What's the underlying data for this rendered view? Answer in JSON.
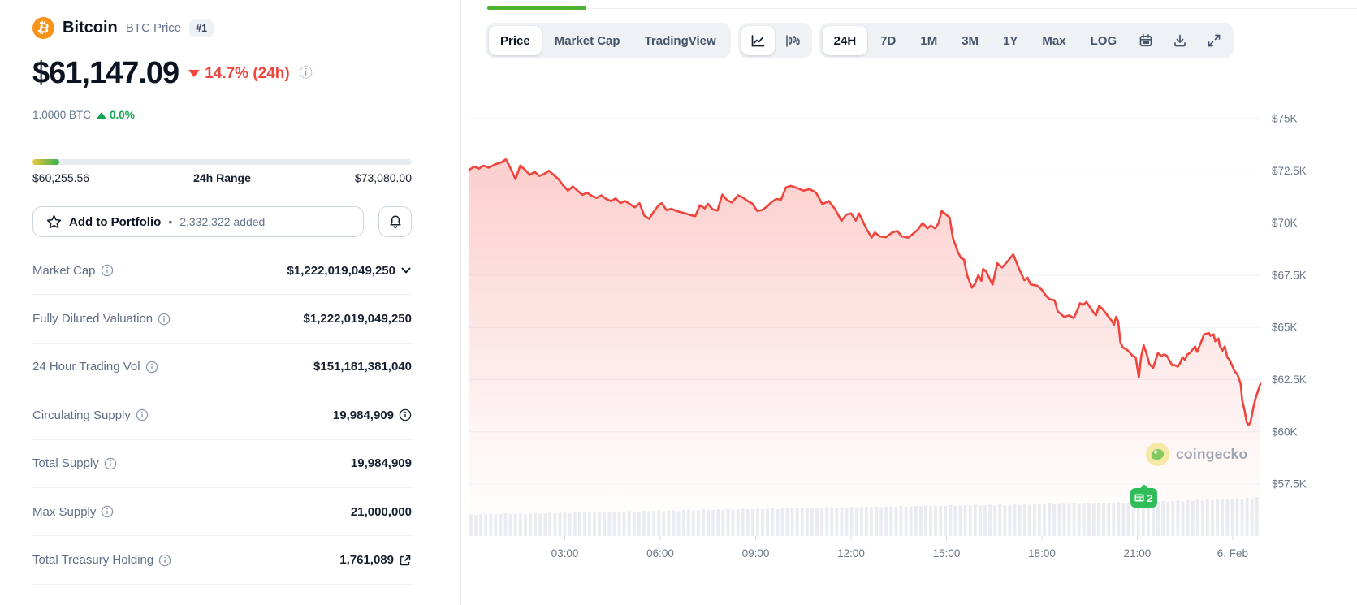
{
  "coin": {
    "name": "Bitcoin",
    "symbol_label": "BTC Price",
    "rank": "#1"
  },
  "price": {
    "value": "$61,147.09",
    "change": "14.7% (24h)",
    "change_direction": "down",
    "btc_value": "1.0000 BTC",
    "btc_change": "0.0%",
    "btc_change_direction": "up"
  },
  "range": {
    "low": "$60,255.56",
    "label": "24h Range",
    "high": "$73,080.00",
    "fill_pct": 7
  },
  "portfolio": {
    "label": "Add to Portfolio",
    "bullet": "•",
    "added": "2,332,322 added"
  },
  "stats": [
    {
      "label": "Market Cap",
      "value": "$1,222,019,049,250",
      "value_icon": "chevron-down"
    },
    {
      "label": "Fully Diluted Valuation",
      "value": "$1,222,019,049,250"
    },
    {
      "label": "24 Hour Trading Vol",
      "value": "$151,181,381,040"
    },
    {
      "label": "Circulating Supply",
      "value": "19,984,909",
      "value_icon": "info"
    },
    {
      "label": "Total Supply",
      "value": "19,984,909"
    },
    {
      "label": "Max Supply",
      "value": "21,000,000"
    },
    {
      "label": "Total Treasury Holding",
      "value": "1,761,089",
      "value_icon": "external-link"
    }
  ],
  "toolbar": {
    "tabs": [
      {
        "label": "Price",
        "active": true
      },
      {
        "label": "Market Cap",
        "active": false
      },
      {
        "label": "TradingView",
        "active": false
      }
    ],
    "chart_types": [
      {
        "icon": "line-chart-icon",
        "active": true
      },
      {
        "icon": "candlestick-icon",
        "active": false
      }
    ],
    "ranges": [
      {
        "label": "24H",
        "active": true
      },
      {
        "label": "7D",
        "active": false
      },
      {
        "label": "1M",
        "active": false
      },
      {
        "label": "3M",
        "active": false
      },
      {
        "label": "1Y",
        "active": false
      },
      {
        "label": "Max",
        "active": false
      },
      {
        "label": "LOG",
        "active": false
      }
    ],
    "tools": [
      "calendar-icon",
      "download-icon",
      "expand-icon"
    ]
  },
  "chart_badge": {
    "count": "2"
  },
  "watermark": {
    "text": "coingecko"
  },
  "colors": {
    "accent_red": "#f0453d",
    "up_green": "#0fa84e",
    "badge_green": "#2ebd59",
    "tab_indicator_green": "#4eb330",
    "range_gradient": [
      "#edc53f",
      "#35b34a"
    ],
    "volume_bar": "#e9edf2",
    "gridline": "#f0f2f5",
    "axis_label": "#6b7787",
    "bitcoin_orange": "#f7931a"
  },
  "chart_data": {
    "type": "line",
    "title": "Bitcoin price, 24H",
    "x_unit": "hours since 00:00",
    "xlim": [
      0,
      24.87
    ],
    "ylim_usd_thousands": [
      57.5,
      76.4
    ],
    "grid": "horizontal",
    "legend": "none",
    "line_color": "#f0453d",
    "fill": "red gradient fading down",
    "y_ticks": [
      {
        "v": 75,
        "label": "$75K"
      },
      {
        "v": 72.5,
        "label": "$72.5K"
      },
      {
        "v": 70,
        "label": "$70K"
      },
      {
        "v": 67.5,
        "label": "$67.5K"
      },
      {
        "v": 65,
        "label": "$65K"
      },
      {
        "v": 62.5,
        "label": "$62.5K"
      },
      {
        "v": 60,
        "label": "$60K"
      },
      {
        "v": 57.5,
        "label": "$57.5K"
      }
    ],
    "x_ticks": [
      {
        "t": 3,
        "label": "03:00"
      },
      {
        "t": 6,
        "label": "06:00"
      },
      {
        "t": 9,
        "label": "09:00"
      },
      {
        "t": 12,
        "label": "12:00"
      },
      {
        "t": 15,
        "label": "15:00"
      },
      {
        "t": 18,
        "label": "18:00"
      },
      {
        "t": 21,
        "label": "21:00"
      },
      {
        "t": 24,
        "label": "6. Feb"
      }
    ],
    "series": [
      {
        "name": "BTC price (USD thousands)",
        "points": [
          [
            0,
            72.55
          ],
          [
            0.15,
            72.7
          ],
          [
            0.3,
            72.6
          ],
          [
            0.45,
            72.75
          ],
          [
            0.6,
            72.65
          ],
          [
            0.8,
            72.8
          ],
          [
            1,
            72.9
          ],
          [
            1.15,
            73.05
          ],
          [
            1.3,
            72.6
          ],
          [
            1.45,
            72.1
          ],
          [
            1.6,
            72.75
          ],
          [
            1.75,
            72.55
          ],
          [
            1.9,
            72.3
          ],
          [
            2.05,
            72.45
          ],
          [
            2.2,
            72.25
          ],
          [
            2.35,
            72.35
          ],
          [
            2.5,
            72.5
          ],
          [
            2.65,
            72.3
          ],
          [
            2.8,
            72.1
          ],
          [
            2.95,
            71.8
          ],
          [
            3.1,
            71.55
          ],
          [
            3.25,
            71.75
          ],
          [
            3.4,
            71.55
          ],
          [
            3.55,
            71.35
          ],
          [
            3.7,
            71.45
          ],
          [
            3.85,
            71.3
          ],
          [
            4,
            71.2
          ],
          [
            4.15,
            71.32
          ],
          [
            4.3,
            71.15
          ],
          [
            4.45,
            71.05
          ],
          [
            4.6,
            71.18
          ],
          [
            4.75,
            70.95
          ],
          [
            4.9,
            71.05
          ],
          [
            5.05,
            70.9
          ],
          [
            5.2,
            70.75
          ],
          [
            5.35,
            70.95
          ],
          [
            5.5,
            70.35
          ],
          [
            5.65,
            70.2
          ],
          [
            5.8,
            70.55
          ],
          [
            5.95,
            70.85
          ],
          [
            6.05,
            70.95
          ],
          [
            6.2,
            70.62
          ],
          [
            6.35,
            70.68
          ],
          [
            6.5,
            70.58
          ],
          [
            6.65,
            70.52
          ],
          [
            6.8,
            70.46
          ],
          [
            6.95,
            70.38
          ],
          [
            7.1,
            70.33
          ],
          [
            7.25,
            70.85
          ],
          [
            7.4,
            70.7
          ],
          [
            7.5,
            70.92
          ],
          [
            7.65,
            70.65
          ],
          [
            7.8,
            70.6
          ],
          [
            7.95,
            71.36
          ],
          [
            8.1,
            71.1
          ],
          [
            8.25,
            70.98
          ],
          [
            8.45,
            71.32
          ],
          [
            8.6,
            71.22
          ],
          [
            8.75,
            71.05
          ],
          [
            8.9,
            70.92
          ],
          [
            9.05,
            70.58
          ],
          [
            9.2,
            70.62
          ],
          [
            9.35,
            70.78
          ],
          [
            9.5,
            71
          ],
          [
            9.65,
            71.15
          ],
          [
            9.8,
            71.12
          ],
          [
            9.95,
            71.7
          ],
          [
            10.1,
            71.78
          ],
          [
            10.3,
            71.68
          ],
          [
            10.5,
            71.55
          ],
          [
            10.7,
            71.62
          ],
          [
            10.9,
            71.45
          ],
          [
            11.1,
            70.9
          ],
          [
            11.3,
            71.05
          ],
          [
            11.5,
            70.66
          ],
          [
            11.7,
            70.1
          ],
          [
            11.85,
            70.4
          ],
          [
            12,
            70.46
          ],
          [
            12.15,
            70.12
          ],
          [
            12.25,
            70.46
          ],
          [
            12.5,
            69.68
          ],
          [
            12.65,
            69.3
          ],
          [
            12.75,
            69.55
          ],
          [
            12.9,
            69.36
          ],
          [
            13.1,
            69.32
          ],
          [
            13.3,
            69.55
          ],
          [
            13.45,
            69.62
          ],
          [
            13.6,
            69.36
          ],
          [
            13.8,
            69.3
          ],
          [
            14,
            69.55
          ],
          [
            14.1,
            69.68
          ],
          [
            14.25,
            70
          ],
          [
            14.4,
            69.74
          ],
          [
            14.5,
            69.87
          ],
          [
            14.65,
            69.74
          ],
          [
            14.75,
            70
          ],
          [
            14.85,
            70.58
          ],
          [
            14.95,
            70.45
          ],
          [
            15.1,
            70.26
          ],
          [
            15.2,
            69.3
          ],
          [
            15.35,
            68.65
          ],
          [
            15.45,
            68.33
          ],
          [
            15.55,
            68.26
          ],
          [
            15.65,
            67.5
          ],
          [
            15.8,
            66.9
          ],
          [
            15.9,
            67.1
          ],
          [
            16,
            67.5
          ],
          [
            16.1,
            67.23
          ],
          [
            16.15,
            67.8
          ],
          [
            16.25,
            67.68
          ],
          [
            16.35,
            67.36
          ],
          [
            16.45,
            67.05
          ],
          [
            16.6,
            68.07
          ],
          [
            16.75,
            67.87
          ],
          [
            16.9,
            68.13
          ],
          [
            17.1,
            68.5
          ],
          [
            17.3,
            67.75
          ],
          [
            17.45,
            67.26
          ],
          [
            17.55,
            67.38
          ],
          [
            17.65,
            67.06
          ],
          [
            17.85,
            67
          ],
          [
            18,
            66.8
          ],
          [
            18.15,
            66.48
          ],
          [
            18.25,
            66.35
          ],
          [
            18.4,
            66.3
          ],
          [
            18.5,
            65.77
          ],
          [
            18.6,
            65.64
          ],
          [
            18.7,
            65.5
          ],
          [
            18.85,
            65.58
          ],
          [
            19,
            65.45
          ],
          [
            19.1,
            65.77
          ],
          [
            19.2,
            66.16
          ],
          [
            19.3,
            66.08
          ],
          [
            19.4,
            66.22
          ],
          [
            19.5,
            66
          ],
          [
            19.6,
            65.77
          ],
          [
            19.7,
            65.58
          ],
          [
            19.8,
            66.03
          ],
          [
            19.9,
            65.9
          ],
          [
            20,
            65.7
          ],
          [
            20.1,
            65.5
          ],
          [
            20.2,
            65.32
          ],
          [
            20.27,
            65.12
          ],
          [
            20.33,
            65.5
          ],
          [
            20.4,
            65.3
          ],
          [
            20.47,
            64.28
          ],
          [
            20.55,
            64.03
          ],
          [
            20.65,
            63.96
          ],
          [
            20.75,
            63.83
          ],
          [
            20.85,
            63.64
          ],
          [
            20.95,
            63.57
          ],
          [
            21.05,
            62.6
          ],
          [
            21.12,
            63.57
          ],
          [
            21.2,
            64.15
          ],
          [
            21.3,
            63.7
          ],
          [
            21.38,
            63.25
          ],
          [
            21.5,
            63.06
          ],
          [
            21.56,
            63.38
          ],
          [
            21.65,
            63.77
          ],
          [
            21.75,
            63.64
          ],
          [
            21.85,
            63.7
          ],
          [
            21.93,
            63.64
          ],
          [
            22,
            63.45
          ],
          [
            22.1,
            63.19
          ],
          [
            22.17,
            63.2
          ],
          [
            22.27,
            63.12
          ],
          [
            22.35,
            63.3
          ],
          [
            22.42,
            63.57
          ],
          [
            22.5,
            63.45
          ],
          [
            22.57,
            63.7
          ],
          [
            22.65,
            63.77
          ],
          [
            22.75,
            63.96
          ],
          [
            22.82,
            64.09
          ],
          [
            22.88,
            63.83
          ],
          [
            23,
            64.28
          ],
          [
            23.1,
            64.67
          ],
          [
            23.25,
            64.73
          ],
          [
            23.3,
            64.6
          ],
          [
            23.4,
            64.67
          ],
          [
            23.45,
            64.34
          ],
          [
            23.55,
            64.47
          ],
          [
            23.6,
            64.09
          ],
          [
            23.68,
            63.89
          ],
          [
            23.75,
            64.09
          ],
          [
            23.83,
            63.57
          ],
          [
            23.9,
            63.45
          ],
          [
            23.98,
            63.19
          ],
          [
            24.05,
            62.93
          ],
          [
            24.15,
            62.74
          ],
          [
            24.25,
            62.3
          ],
          [
            24.3,
            61.5
          ],
          [
            24.38,
            60.98
          ],
          [
            24.44,
            60.46
          ],
          [
            24.5,
            60.33
          ],
          [
            24.56,
            60.46
          ],
          [
            24.61,
            60.85
          ],
          [
            24.66,
            61.24
          ],
          [
            24.71,
            61.56
          ],
          [
            24.78,
            61.89
          ],
          [
            24.87,
            62.3
          ]
        ]
      }
    ],
    "volume": {
      "color": "#e9edf2",
      "normalized_heights": [
        0.55,
        0.54,
        0.56,
        0.55,
        0.57,
        0.55,
        0.56,
        0.58,
        0.56,
        0.57,
        0.58,
        0.56,
        0.57,
        0.59,
        0.57,
        0.58,
        0.6,
        0.58,
        0.59,
        0.6,
        0.59,
        0.61,
        0.6,
        0.61,
        0.62,
        0.6,
        0.61,
        0.63,
        0.61,
        0.62,
        0.63,
        0.62,
        0.64,
        0.62,
        0.63,
        0.65,
        0.63,
        0.64,
        0.66,
        0.64,
        0.65,
        0.66,
        0.64,
        0.66,
        0.67,
        0.65,
        0.66,
        0.68,
        0.66,
        0.67,
        0.68,
        0.67,
        0.69,
        0.67,
        0.68,
        0.7,
        0.68,
        0.69,
        0.7,
        0.69,
        0.7,
        0.71,
        0.69,
        0.71,
        0.72,
        0.7,
        0.71,
        0.73,
        0.71,
        0.72,
        0.73,
        0.72,
        0.74,
        0.72,
        0.73,
        0.74,
        0.73,
        0.75,
        0.73,
        0.74,
        0.75,
        0.74,
        0.76,
        0.74,
        0.75,
        0.76,
        0.75,
        0.77,
        0.75,
        0.76,
        0.77,
        0.76,
        0.78,
        0.76,
        0.77,
        0.78,
        0.77,
        0.79,
        0.77,
        0.78,
        0.79,
        0.78,
        0.8,
        0.78,
        0.79,
        0.8,
        0.79,
        0.81,
        0.79,
        0.8,
        0.81,
        0.8,
        0.82,
        0.8,
        0.81,
        0.82,
        0.81,
        0.83,
        0.81,
        0.82,
        0.83,
        0.82,
        0.84,
        0.82,
        0.83,
        0.85,
        0.83,
        0.84,
        0.86,
        0.84,
        0.85,
        0.87,
        0.85,
        0.86,
        0.88,
        0.86,
        0.87,
        0.89,
        0.87,
        0.88,
        0.9,
        0.88,
        0.89,
        0.91,
        0.89,
        0.92,
        0.9,
        0.93,
        0.91,
        0.94,
        0.92,
        0.95,
        0.93,
        0.96,
        0.94,
        0.97,
        0.95,
        0.98,
        0.96,
        1.0
      ]
    },
    "annotations": [
      {
        "type": "news-count-badge",
        "t": 21.1,
        "label": "2"
      }
    ]
  }
}
